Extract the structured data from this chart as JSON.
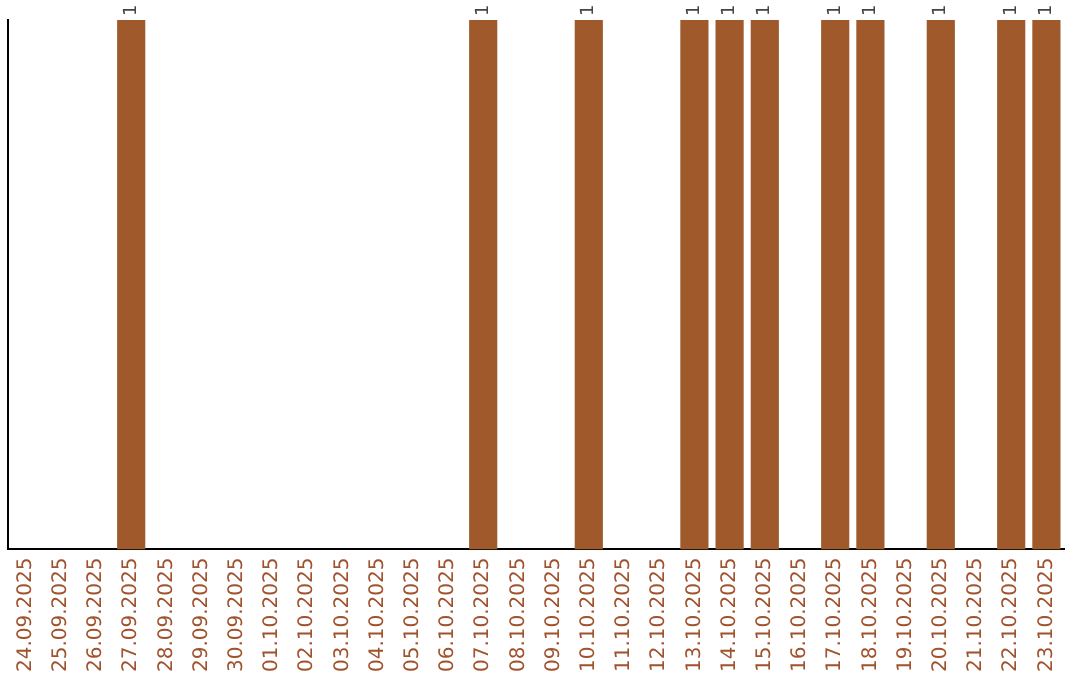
{
  "chart_data": {
    "type": "bar",
    "categories": [
      "24.09.2025",
      "25.09.2025",
      "26.09.2025",
      "27.09.2025",
      "28.09.2025",
      "29.09.2025",
      "30.09.2025",
      "01.10.2025",
      "02.10.2025",
      "03.10.2025",
      "04.10.2025",
      "05.10.2025",
      "06.10.2025",
      "07.10.2025",
      "08.10.2025",
      "09.10.2025",
      "10.10.2025",
      "11.10.2025",
      "12.10.2025",
      "13.10.2025",
      "14.10.2025",
      "15.10.2025",
      "16.10.2025",
      "17.10.2025",
      "18.10.2025",
      "19.10.2025",
      "20.10.2025",
      "21.10.2025",
      "22.10.2025",
      "23.10.2025"
    ],
    "values": [
      0,
      0,
      0,
      1,
      0,
      0,
      0,
      0,
      0,
      0,
      0,
      0,
      0,
      1,
      0,
      0,
      1,
      0,
      0,
      1,
      1,
      1,
      0,
      1,
      1,
      0,
      1,
      0,
      1,
      1
    ],
    "value_labels": [
      null,
      null,
      null,
      "1",
      null,
      null,
      null,
      null,
      null,
      null,
      null,
      null,
      null,
      "1",
      null,
      null,
      "1",
      null,
      null,
      "1",
      "1",
      "1",
      null,
      "1",
      "1",
      null,
      "1",
      null,
      "1",
      "1"
    ],
    "color": "#a0592a",
    "grid": false,
    "legend": false,
    "tick_labels": "x"
  }
}
